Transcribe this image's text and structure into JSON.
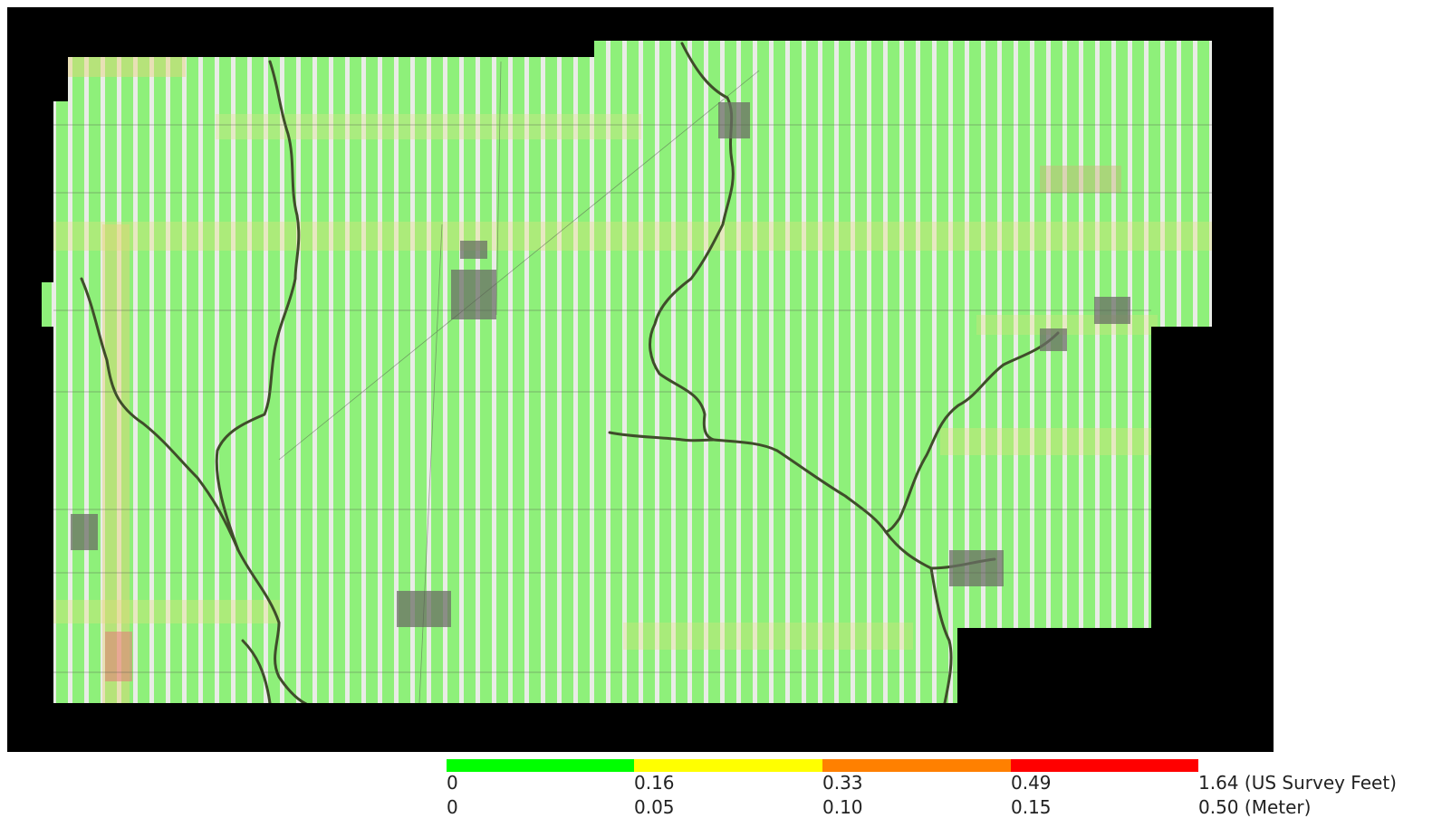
{
  "map": {
    "background_color": "#000000",
    "coverage_fill_color": "#8ef07a",
    "strip_gap_color": "#e9ece6",
    "river_color": "#3f4d2a",
    "elevated_error_color": "#e6e27a",
    "high_error_color": "#e87a7a"
  },
  "legend": {
    "bins": [
      {
        "color": "#00ff00"
      },
      {
        "color": "#ffff00"
      },
      {
        "color": "#ff8000"
      },
      {
        "color": "#ff0000"
      }
    ],
    "feet_labels": [
      "0",
      "0.16",
      "0.33",
      "0.49",
      "1.64 (US Survey Feet)"
    ],
    "meter_labels": [
      "0",
      "0.05",
      "0.10",
      "0.15",
      "0.50 (Meter)"
    ]
  }
}
